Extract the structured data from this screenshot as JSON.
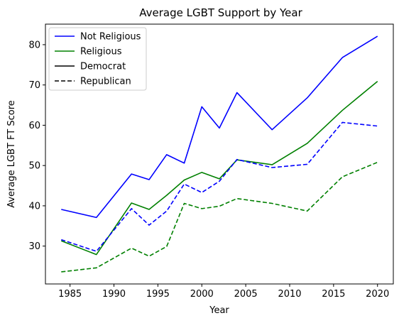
{
  "chart_data": {
    "type": "line",
    "title": "Average LGBT Support by Year",
    "xlabel": "Year",
    "ylabel": "Average LGBT FT Score",
    "xlim": [
      1982.2,
      2021.8
    ],
    "ylim": [
      20.6,
      85.1
    ],
    "xticks": [
      1985,
      1990,
      1995,
      2000,
      2005,
      2010,
      2015,
      2020
    ],
    "yticks": [
      30,
      40,
      50,
      60,
      70,
      80
    ],
    "grid": false,
    "legend_position": "top-left",
    "legend": [
      {
        "label": "Not Religious",
        "color": "#0000ff",
        "dash": "solid"
      },
      {
        "label": "Religious",
        "color": "#008000",
        "dash": "solid"
      },
      {
        "label": "Democrat",
        "color": "#000000",
        "dash": "solid"
      },
      {
        "label": "Republican",
        "color": "#000000",
        "dash": "dashed"
      }
    ],
    "x": [
      1984,
      1988,
      1992,
      1994,
      1996,
      1998,
      2000,
      2002,
      2004,
      2008,
      2012,
      2016,
      2020
    ],
    "series": [
      {
        "religion": "Not Religious",
        "party": "Democrat",
        "color": "#0000ff",
        "dash": "solid",
        "values": [
          39.1,
          37.1,
          47.9,
          46.5,
          52.7,
          50.6,
          64.6,
          59.3,
          68.1,
          58.9,
          66.8,
          76.8,
          82.1
        ]
      },
      {
        "religion": "Religious",
        "party": "Democrat",
        "color": "#008000",
        "dash": "solid",
        "values": [
          31.3,
          27.9,
          40.7,
          39.1,
          42.6,
          46.4,
          48.3,
          46.7,
          51.4,
          50.2,
          55.5,
          63.7,
          70.9
        ]
      },
      {
        "religion": "Not Religious",
        "party": "Republican",
        "color": "#0000ff",
        "dash": "dashed",
        "values": [
          31.6,
          28.7,
          39.3,
          35.2,
          38.7,
          45.4,
          43.3,
          46.1,
          51.5,
          49.5,
          50.3,
          60.7,
          59.8
        ]
      },
      {
        "religion": "Religious",
        "party": "Republican",
        "color": "#008000",
        "dash": "dashed",
        "values": [
          23.6,
          24.6,
          29.5,
          27.5,
          29.9,
          40.6,
          39.3,
          39.9,
          41.8,
          40.6,
          38.7,
          47.2,
          50.8
        ]
      }
    ]
  }
}
